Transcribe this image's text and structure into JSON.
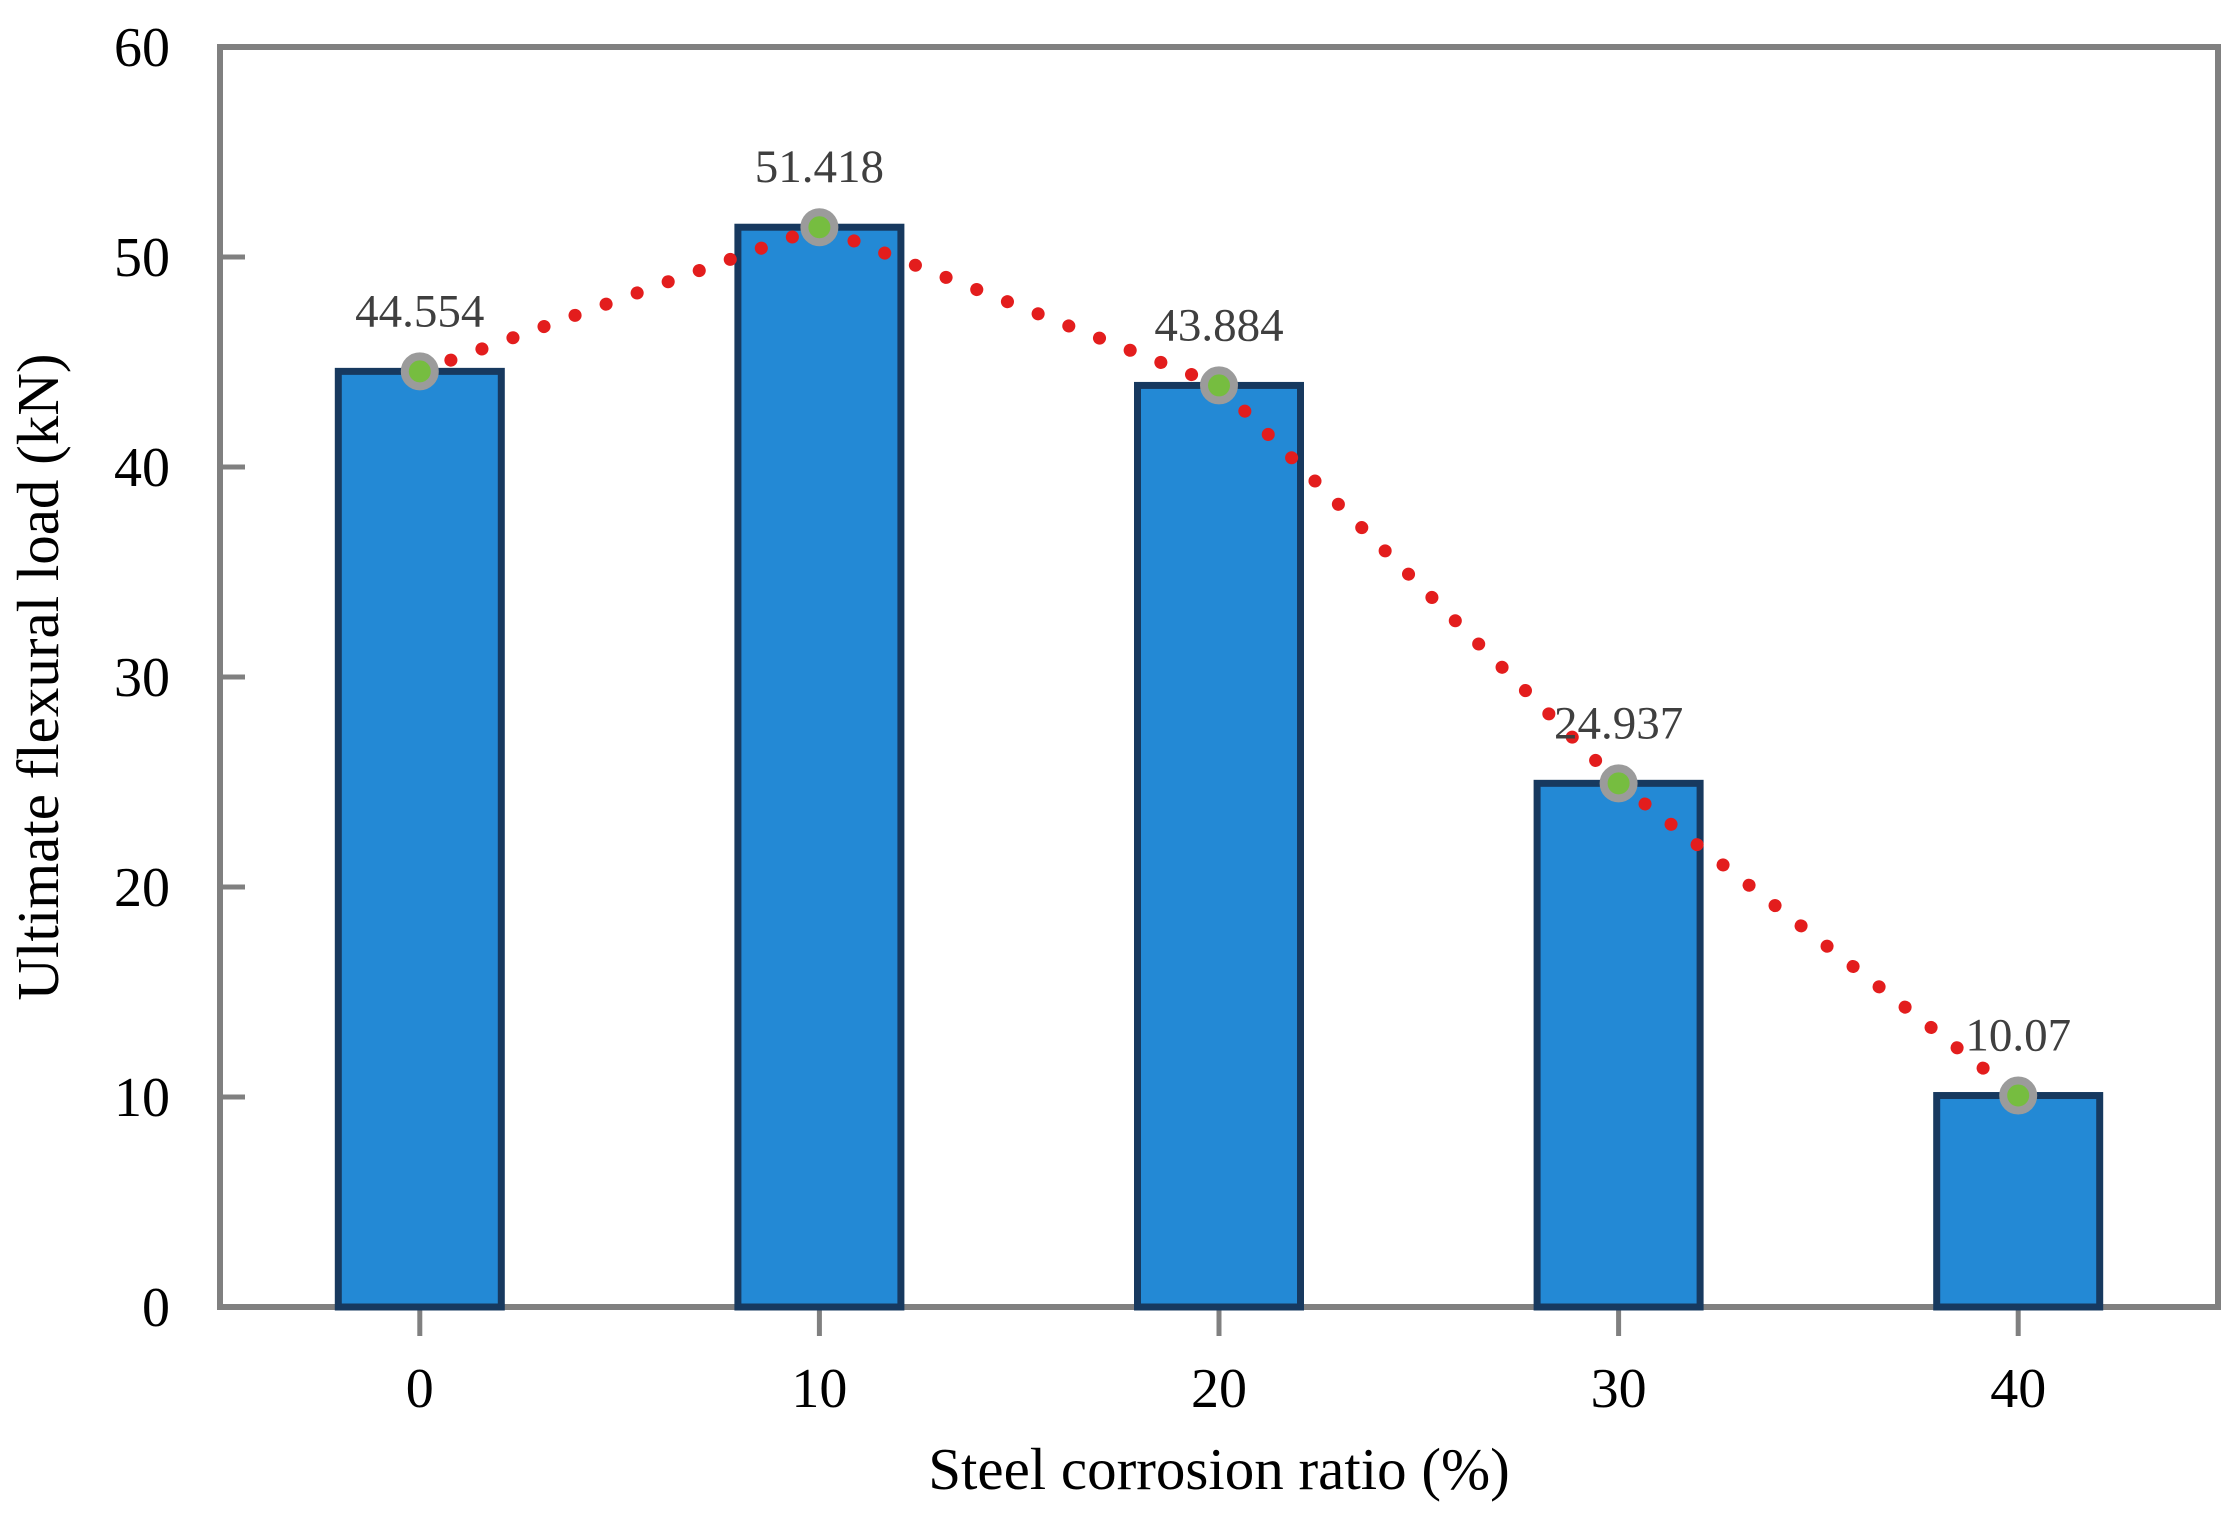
{
  "chart_data": {
    "type": "bar",
    "title": "",
    "categories": [
      "0",
      "10",
      "20",
      "30",
      "40"
    ],
    "values": [
      44.554,
      51.418,
      43.884,
      24.937,
      10.07
    ],
    "data_labels": [
      "44.554",
      "51.418",
      "43.884",
      "24.937",
      "10.07"
    ],
    "xlabel": "Steel corrosion ratio (%)",
    "ylabel": "Ultimate flexural load (kN)",
    "ylim": [
      0,
      60
    ],
    "ytick_step": 10,
    "y_tick_labels": [
      "0",
      "10",
      "20",
      "30",
      "40",
      "50",
      "60"
    ],
    "grid": "off",
    "legend": "none",
    "line_overlay": {
      "style": "red-dotted-line-with-green-circle-markers",
      "follows_bar_tops": true,
      "values": [
        44.554,
        51.418,
        43.884,
        24.937,
        10.07
      ]
    },
    "colors": {
      "background": "#ffffff",
      "bar_fill": "#2389d5",
      "bar_border": "#17395f",
      "axis_line": "#808080",
      "tick_label": "#000000",
      "axis_title": "#000000",
      "data_label": "#3f3f3f",
      "trend_line": "#e31d1d",
      "marker_fill": "#76bd40",
      "marker_ring": "#9b9b9b"
    }
  }
}
